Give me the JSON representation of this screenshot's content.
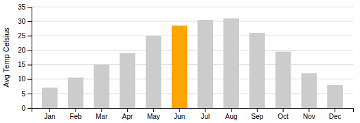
{
  "chart_data": {
    "type": "bar",
    "categories": [
      "Jan",
      "Feb",
      "Mar",
      "Apr",
      "May",
      "Jun",
      "Jul",
      "Aug",
      "Sep",
      "Oct",
      "Nov",
      "Dec"
    ],
    "values": [
      7,
      10.5,
      15,
      19,
      25,
      28.5,
      30.5,
      31,
      26,
      19.5,
      12,
      8
    ],
    "colors": [
      "#cccccc",
      "#cccccc",
      "#cccccc",
      "#cccccc",
      "#cccccc",
      "#FFA500",
      "#cccccc",
      "#cccccc",
      "#cccccc",
      "#cccccc",
      "#cccccc",
      "#cccccc"
    ],
    "ylabel": "Avg Temp Celsius",
    "ylim": [
      0,
      35
    ],
    "yticks": [
      0,
      5,
      10,
      15,
      20,
      25,
      30,
      35
    ],
    "grid": true
  }
}
